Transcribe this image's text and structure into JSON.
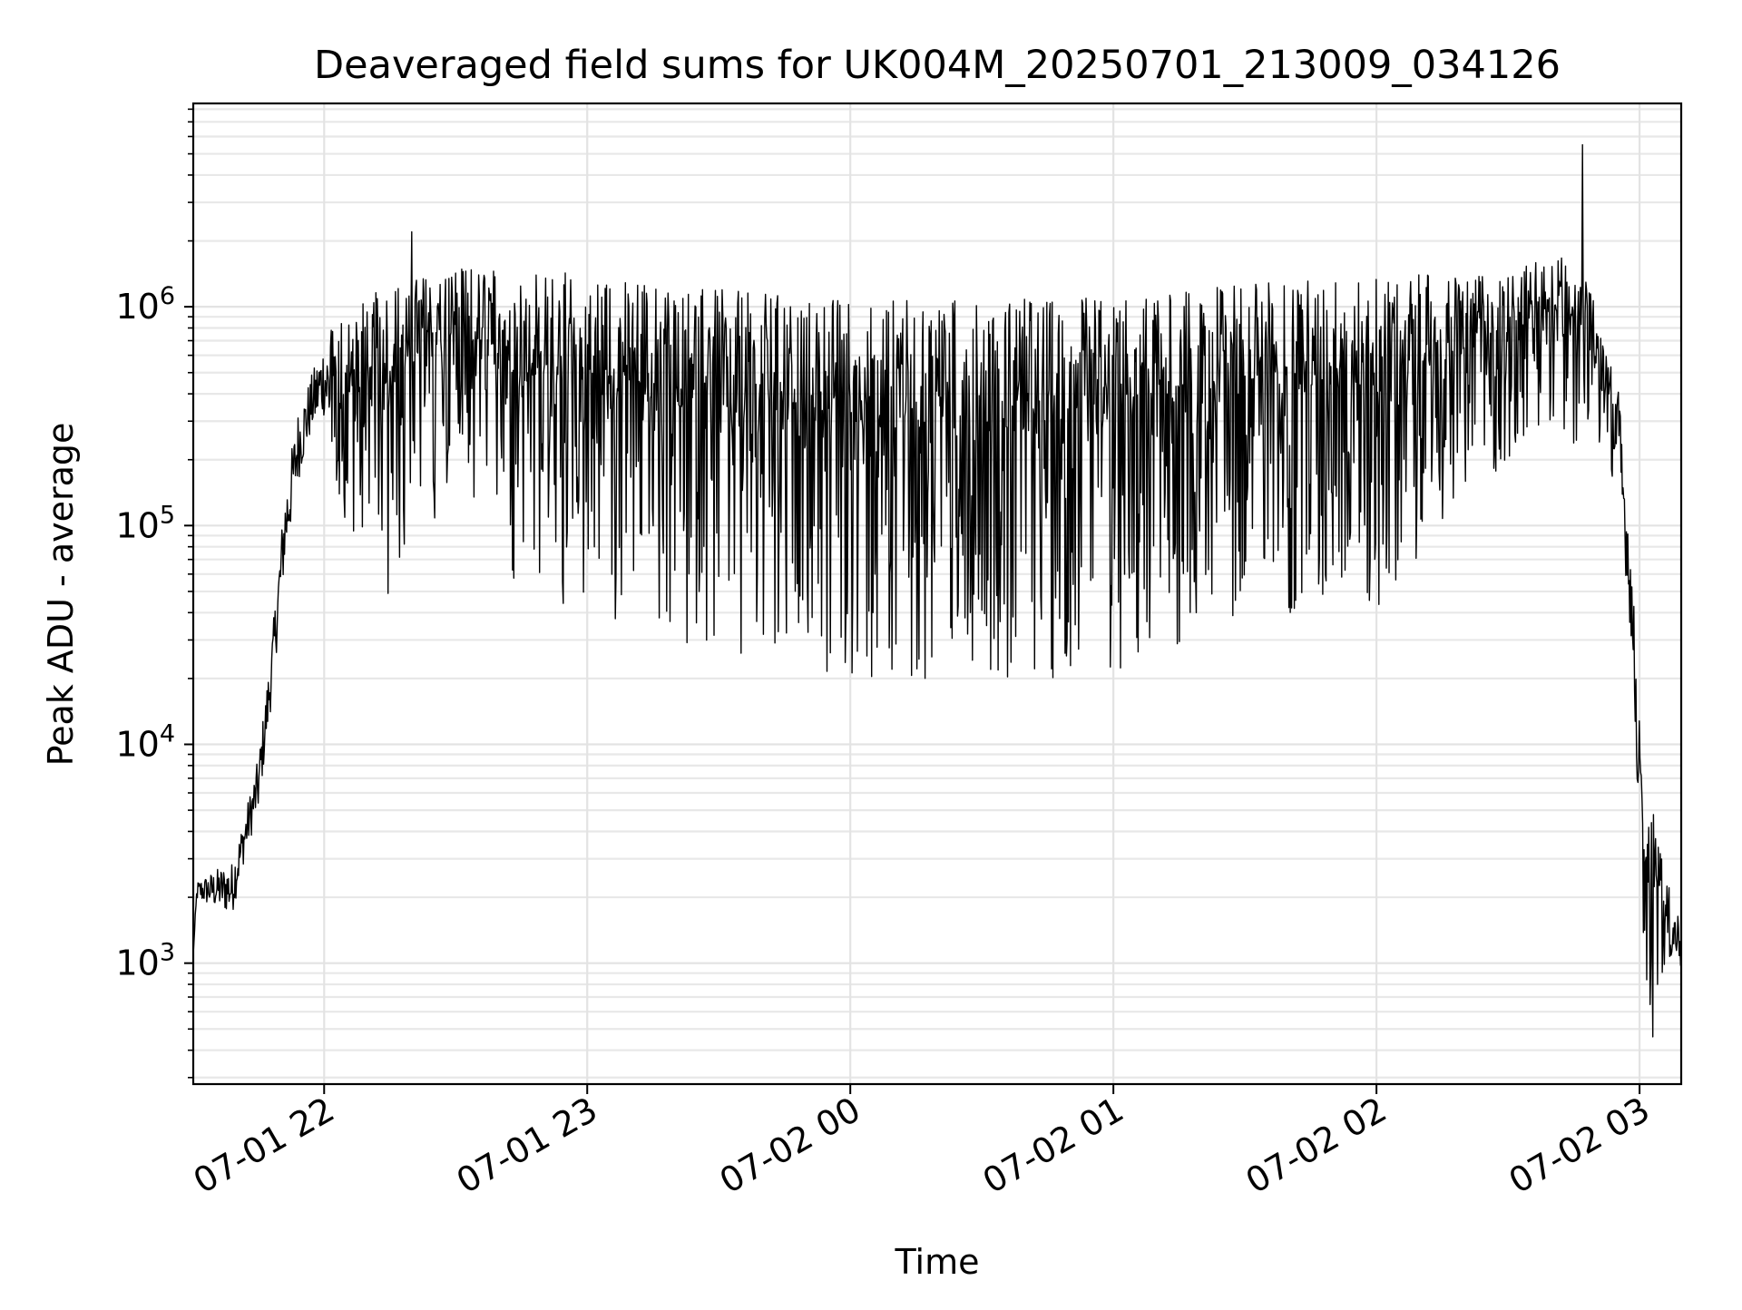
{
  "chart_data": {
    "type": "line",
    "title": "Deaveraged field sums for UK004M_20250701_213009_034126",
    "xlabel": "Time",
    "ylabel": "Peak ADU - average",
    "y_scale": "log",
    "ylim": [
      280,
      8500000
    ],
    "xlim": [
      "2025-07-01 21:30:09",
      "2025-07-02 03:09:30"
    ],
    "grid": "major and minor (both axes)",
    "line_color": "#000000",
    "x_ticks": [
      {
        "label": "07-01 22",
        "t": "2025-07-01 22:00"
      },
      {
        "label": "07-01 23",
        "t": "2025-07-01 23:00"
      },
      {
        "label": "07-02 00",
        "t": "2025-07-02 00:00"
      },
      {
        "label": "07-02 01",
        "t": "2025-07-02 01:00"
      },
      {
        "label": "07-02 02",
        "t": "2025-07-02 02:00"
      },
      {
        "label": "07-02 03",
        "t": "2025-07-02 03:00"
      }
    ],
    "y_ticks": [
      {
        "base": "10",
        "exp": "3",
        "value": 1000
      },
      {
        "base": "10",
        "exp": "4",
        "value": 10000
      },
      {
        "base": "10",
        "exp": "5",
        "value": 100000
      },
      {
        "base": "10",
        "exp": "6",
        "value": 1000000
      }
    ],
    "series": [
      {
        "envelope": [
          {
            "t": "2025-07-01 21:30:09",
            "hi": 1100,
            "lo": 1100
          },
          {
            "t": "2025-07-01 21:31",
            "hi": 2400,
            "lo": 1900
          },
          {
            "t": "2025-07-01 21:36",
            "hi": 2800,
            "lo": 1700
          },
          {
            "t": "2025-07-01 21:39",
            "hi": 3000,
            "lo": 1600
          },
          {
            "t": "2025-07-01 21:42",
            "hi": 5000,
            "lo": 3000
          },
          {
            "t": "2025-07-01 21:45",
            "hi": 9000,
            "lo": 4700
          },
          {
            "t": "2025-07-01 21:48",
            "hi": 30000,
            "lo": 15000
          },
          {
            "t": "2025-07-01 21:51",
            "hi": 150000,
            "lo": 60000
          },
          {
            "t": "2025-07-01 21:54",
            "hi": 350000,
            "lo": 150000
          },
          {
            "t": "2025-07-01 21:57",
            "hi": 500000,
            "lo": 250000
          },
          {
            "t": "2025-07-01 22:00",
            "hi": 750000,
            "lo": 300000
          },
          {
            "t": "2025-07-01 22:04",
            "hi": 900000,
            "lo": 100000
          },
          {
            "t": "2025-07-01 22:15",
            "hi": 1300000,
            "lo": 45000
          },
          {
            "t": "2025-07-01 22:30",
            "hi": 1500000,
            "lo": 150000
          },
          {
            "t": "2025-07-01 22:45",
            "hi": 1500000,
            "lo": 50000
          },
          {
            "t": "2025-07-01 23:00",
            "hi": 1400000,
            "lo": 40000
          },
          {
            "t": "2025-07-01 23:30",
            "hi": 1200000,
            "lo": 25000
          },
          {
            "t": "2025-07-02 00:00",
            "hi": 1100000,
            "lo": 20000
          },
          {
            "t": "2025-07-02 00:30",
            "hi": 1100000,
            "lo": 20000
          },
          {
            "t": "2025-07-02 01:00",
            "hi": 1100000,
            "lo": 20000
          },
          {
            "t": "2025-07-02 01:30",
            "hi": 1300000,
            "lo": 40000
          },
          {
            "t": "2025-07-02 02:00",
            "hi": 1400000,
            "lo": 40000
          },
          {
            "t": "2025-07-02 02:30",
            "hi": 1400000,
            "lo": 200000
          },
          {
            "t": "2025-07-02 02:40",
            "hi": 1800000,
            "lo": 300000
          },
          {
            "t": "2025-07-02 02:47",
            "hi": 1500000,
            "lo": 200000
          },
          {
            "t": "2025-07-02 02:55",
            "hi": 500000,
            "lo": 150000
          },
          {
            "t": "2025-07-02 02:58",
            "hi": 90000,
            "lo": 30000
          },
          {
            "t": "2025-07-02 03:01",
            "hi": 5500,
            "lo": 1100
          },
          {
            "t": "2025-07-02 03:03",
            "hi": 5000,
            "lo": 450
          },
          {
            "t": "2025-07-02 03:06",
            "hi": 2500,
            "lo": 1000
          },
          {
            "t": "2025-07-02 03:09:30",
            "hi": 1700,
            "lo": 900
          }
        ],
        "spikes": [
          {
            "t": "2025-07-01 22:20",
            "value": 2200000
          },
          {
            "t": "2025-07-02 02:47",
            "value": 5500000
          }
        ]
      }
    ]
  }
}
